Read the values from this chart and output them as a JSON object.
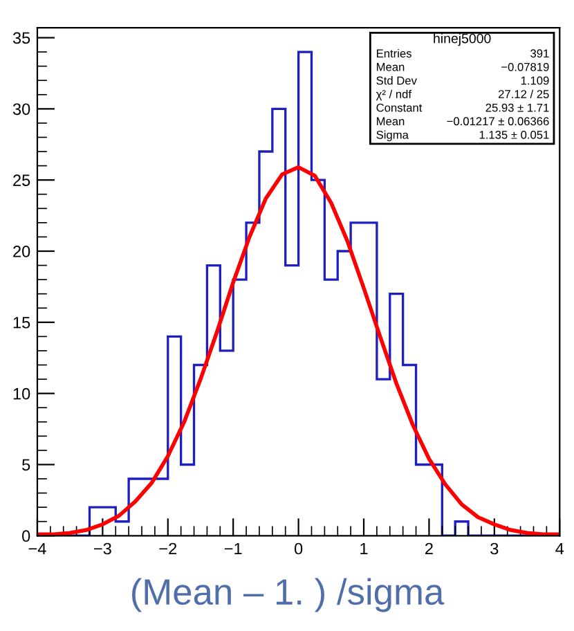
{
  "chart_data": {
    "type": "histogram",
    "xlabel": "(Mean – 1. ) /sigma",
    "xlim": [
      -4,
      4
    ],
    "xticks": [
      {
        "value": -4,
        "label": "−4"
      },
      {
        "value": -3,
        "label": "−3"
      },
      {
        "value": -2,
        "label": "−2"
      },
      {
        "value": -1,
        "label": "−1"
      },
      0,
      1,
      2,
      3,
      4
    ],
    "ylim": [
      0,
      35.7
    ],
    "yticks": [
      0,
      5,
      10,
      15,
      20,
      25,
      30,
      35
    ],
    "grid": false,
    "series": [
      {
        "color": "#1f1fbf",
        "bins": [
          -4.0,
          -3.8,
          -3.6,
          -3.4,
          -3.2,
          -3.0,
          -2.8,
          -2.6,
          -2.4,
          -2.2,
          -2.0,
          -1.8,
          -1.6,
          -1.4,
          -1.2,
          -1.0,
          -0.8,
          -0.6,
          -0.4,
          -0.2,
          0.0,
          0.2,
          0.4,
          0.6,
          0.8,
          1.0,
          1.2,
          1.4,
          1.6,
          1.8,
          2.0,
          2.2,
          2.4,
          2.6,
          2.8,
          3.0,
          3.2,
          3.4,
          3.6,
          3.8,
          4.0
        ],
        "values": [
          0,
          0,
          0,
          0,
          2,
          2,
          1,
          4,
          4,
          4,
          14,
          5,
          12,
          19,
          13,
          18,
          22,
          27,
          30,
          19,
          34,
          25,
          18,
          20,
          22,
          22,
          11,
          17,
          12,
          5,
          5,
          0,
          1,
          0,
          0,
          0,
          0,
          0,
          0,
          0
        ]
      },
      {
        "type": "line",
        "color": "#ff0000",
        "x": [
          -4,
          -3.75,
          -3.5,
          -3.25,
          -3,
          -2.75,
          -2.5,
          -2.25,
          -2,
          -1.75,
          -1.5,
          -1.25,
          -1,
          -0.75,
          -0.5,
          -0.25,
          0,
          0.25,
          0.5,
          0.75,
          1,
          1.25,
          1.5,
          1.75,
          2,
          2.25,
          2.5,
          2.75,
          3,
          3.25,
          3.5,
          3.75,
          4
        ],
        "values": [
          0.1,
          0.1,
          0.2,
          0.4,
          0.8,
          1.4,
          2.4,
          3.7,
          5.6,
          8.0,
          11.0,
          14.3,
          17.8,
          21.0,
          23.7,
          25.4,
          25.9,
          25.3,
          23.4,
          20.7,
          17.4,
          14.0,
          10.7,
          7.8,
          5.4,
          3.6,
          2.2,
          1.3,
          0.8,
          0.4,
          0.2,
          0.1,
          0.1
        ]
      }
    ],
    "annotations": [
      "hinej5000",
      "Entries  391",
      "Mean  −0.07819",
      "Std Dev  1.109",
      "χ² / ndf  27.12 / 25",
      "Constant  25.93 ± 1.71",
      "Mean  −0.01217 ± 0.06366",
      "Sigma  1.135 ± 0.051"
    ]
  }
}
